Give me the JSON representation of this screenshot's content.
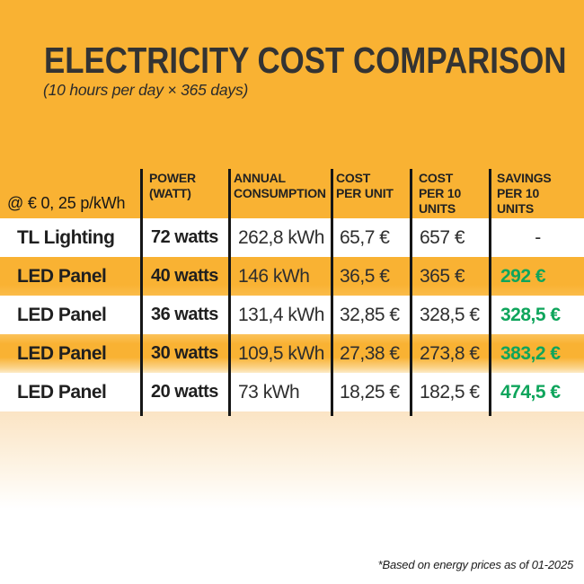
{
  "header": {
    "title": "ELECTRICITY COST COMPARISON",
    "subtitle": "(10 hours per day × 365 days)"
  },
  "table": {
    "rate_note": "@ € 0, 25 p/kWh",
    "headers": [
      "POWER\n(WATT)",
      "ANNUAL\nCONSUMPTION",
      "COST\nPER UNIT",
      "COST\nPER 10\nUNITS",
      "SAVINGS\nPER 10\nUNITS"
    ],
    "rows": [
      {
        "name": "TL Lighting",
        "power": "72 watts",
        "annual": "262,8 kWh",
        "cost_unit": "65,7 €",
        "cost_10": "657 €",
        "savings": "-"
      },
      {
        "name": "LED Panel",
        "power": "40 watts",
        "annual": "146 kWh",
        "cost_unit": "36,5 €",
        "cost_10": "365 €",
        "savings": "292 €"
      },
      {
        "name": "LED Panel",
        "power": "36 watts",
        "annual": "131,4 kWh",
        "cost_unit": "32,85 €",
        "cost_10": "328,5 €",
        "savings": "328,5 €"
      },
      {
        "name": "LED Panel",
        "power": "30 watts",
        "annual": "109,5 kWh",
        "cost_unit": "27,38 €",
        "cost_10": "273,8 €",
        "savings": "383,2 €"
      },
      {
        "name": "LED Panel",
        "power": "20 watts",
        "annual": "73 kWh",
        "cost_unit": "18,25 €",
        "cost_10": "182,5 €",
        "savings": "474,5 €"
      }
    ]
  },
  "footnote": "*Based on energy prices as of 01-2025",
  "colors": {
    "orange": "#F9B233",
    "green": "#0FA55C",
    "ink": "#2E2E2E",
    "line": "#161616"
  },
  "chart_data": {
    "type": "table",
    "title": "ELECTRICITY COST COMPARISON",
    "subtitle": "(10 hours per day × 365 days)",
    "rate_assumption": "@ € 0, 25 p/kWh",
    "columns": [
      "",
      "POWER (WATT)",
      "ANNUAL CONSUMPTION",
      "COST PER UNIT",
      "COST PER 10 UNITS",
      "SAVINGS PER 10 UNITS"
    ],
    "rows": [
      [
        "TL Lighting",
        "72 watts",
        "262,8 kWh",
        "65,7 €",
        "657 €",
        "-"
      ],
      [
        "LED Panel",
        "40 watts",
        "146 kWh",
        "36,5 €",
        "365 €",
        "292 €"
      ],
      [
        "LED Panel",
        "36 watts",
        "131,4 kWh",
        "32,85 €",
        "328,5 €",
        "328,5 €"
      ],
      [
        "LED Panel",
        "30 watts",
        "109,5 kWh",
        "27,38 €",
        "273,8 €",
        "383,2 €"
      ],
      [
        "LED Panel",
        "20 watts",
        "73 kWh",
        "18,25 €",
        "182,5 €",
        "474,5 €"
      ]
    ],
    "footnote": "*Based on energy prices as of 01-2025"
  }
}
